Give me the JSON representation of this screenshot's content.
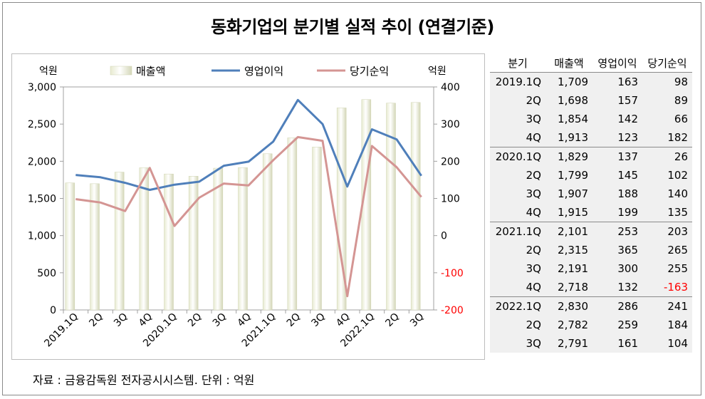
{
  "title": "동화기업의 분기별 실적 추이 (연결기준)",
  "source": "자료 : 금융감독원 전자공시시스템. 단위 : 억원",
  "table": {
    "headers": [
      "분기",
      "매출액",
      "영업이익",
      "당기순익"
    ],
    "rows": [
      [
        "2019.1Q",
        "1,709",
        "163",
        "98"
      ],
      [
        "2Q",
        "1,698",
        "157",
        "89"
      ],
      [
        "3Q",
        "1,854",
        "142",
        "66"
      ],
      [
        "4Q",
        "1,913",
        "123",
        "182"
      ],
      [
        "2020.1Q",
        "1,829",
        "137",
        "26"
      ],
      [
        "2Q",
        "1,799",
        "145",
        "102"
      ],
      [
        "3Q",
        "1,907",
        "188",
        "140"
      ],
      [
        "4Q",
        "1,915",
        "199",
        "135"
      ],
      [
        "2021.1Q",
        "2,101",
        "253",
        "203"
      ],
      [
        "2Q",
        "2,315",
        "365",
        "265"
      ],
      [
        "3Q",
        "2,191",
        "300",
        "255"
      ],
      [
        "4Q",
        "2,718",
        "132",
        "-163"
      ],
      [
        "2022.1Q",
        "2,830",
        "286",
        "241"
      ],
      [
        "2Q",
        "2,782",
        "259",
        "184"
      ],
      [
        "3Q",
        "2,791",
        "161",
        "104"
      ]
    ]
  },
  "chart_data": {
    "type": "bar",
    "categories": [
      "2019.1Q",
      "2Q",
      "3Q",
      "4Q",
      "2020.1Q",
      "2Q",
      "3Q",
      "4Q",
      "2021.1Q",
      "2Q",
      "3Q",
      "4Q",
      "2022.1Q",
      "2Q",
      "3Q"
    ],
    "left_unit": "억원",
    "right_unit": "억원",
    "ylim_left": [
      0,
      3000
    ],
    "yticks_left": [
      "0",
      "500",
      "1,000",
      "1,500",
      "2,000",
      "2,500",
      "3,000"
    ],
    "ylim_right": [
      -200,
      400
    ],
    "yticks_right": [
      "-200",
      "-100",
      "0",
      "100",
      "200",
      "300",
      "400"
    ],
    "series": [
      {
        "name": "매출액",
        "type": "bar",
        "axis": "left",
        "color": "#e2e6c8",
        "values": [
          1709,
          1698,
          1854,
          1913,
          1829,
          1799,
          1907,
          1915,
          2101,
          2315,
          2191,
          2718,
          2830,
          2782,
          2791
        ]
      },
      {
        "name": "영업이익",
        "type": "line",
        "axis": "right",
        "color": "#4f7fba",
        "values": [
          163,
          157,
          142,
          123,
          137,
          145,
          188,
          199,
          253,
          365,
          300,
          132,
          286,
          259,
          161
        ]
      },
      {
        "name": "당기순익",
        "type": "line",
        "axis": "right",
        "color": "#d49593",
        "values": [
          98,
          89,
          66,
          182,
          26,
          102,
          140,
          135,
          203,
          265,
          255,
          -163,
          241,
          184,
          104
        ]
      }
    ],
    "negative_tick_color": "#ff0000",
    "legend_position": "top"
  }
}
